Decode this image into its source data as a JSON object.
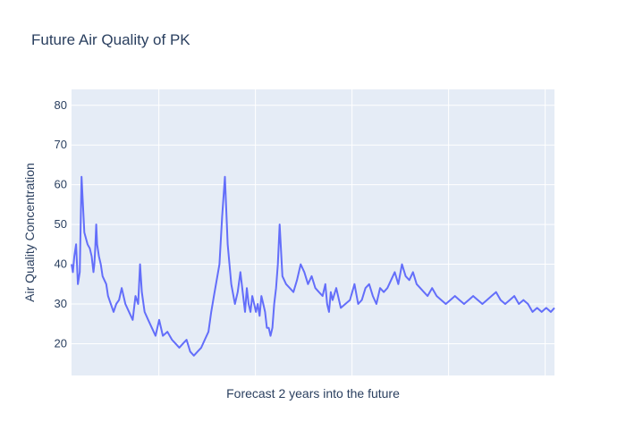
{
  "chart_data": {
    "type": "line",
    "title": "Future Air Quality of PK",
    "xlabel": "Forecast 2 years into the future",
    "ylabel": "Air Quality Concentration",
    "ylim": [
      12,
      84
    ],
    "yticks": [
      20,
      30,
      40,
      50,
      60,
      70,
      80
    ],
    "x_tick_labels_shown": false,
    "grid": true,
    "legend": "none",
    "x": [
      0,
      3,
      6,
      10,
      14,
      18,
      22,
      28,
      35,
      40,
      44,
      48,
      50,
      52,
      54,
      56,
      60,
      64,
      68,
      72,
      76,
      80,
      86,
      92,
      98,
      104,
      110,
      118,
      126,
      134,
      140,
      146,
      150,
      154,
      160,
      168,
      176,
      184,
      192,
      200,
      210,
      220,
      228,
      236,
      244,
      252,
      260,
      268,
      276,
      284,
      292,
      300,
      306,
      312,
      318,
      324,
      330,
      336,
      342,
      350,
      358,
      364,
      370,
      376,
      380,
      384,
      388,
      392,
      396,
      400,
      404,
      408,
      412,
      416,
      420,
      424,
      428,
      432,
      436,
      440,
      444,
      448,
      452,
      456,
      462,
      470,
      478,
      486,
      494,
      502,
      510,
      518,
      526,
      534,
      542,
      550,
      556,
      560,
      564,
      568,
      572,
      580,
      590,
      600,
      610,
      620,
      628,
      636,
      644,
      652,
      660,
      668,
      676,
      684,
      692,
      700,
      708,
      716,
      724,
      732,
      740,
      748,
      756,
      764,
      772,
      780,
      790,
      800,
      810,
      820,
      830,
      840,
      850,
      860,
      870,
      880,
      890,
      900,
      910,
      920,
      930,
      940,
      950,
      960,
      970,
      980,
      990,
      1000,
      1010,
      1020,
      1030,
      1040,
      1050,
      1058
    ],
    "y": [
      40,
      38,
      42,
      45,
      35,
      38,
      62,
      48,
      45,
      44,
      42,
      38,
      40,
      44,
      50,
      45,
      42,
      40,
      37,
      36,
      35,
      32,
      30,
      28,
      30,
      31,
      34,
      30,
      28,
      26,
      32,
      30,
      40,
      33,
      28,
      26,
      24,
      22,
      26,
      22,
      23,
      21,
      20,
      19,
      20,
      21,
      18,
      17,
      18,
      19,
      21,
      23,
      28,
      32,
      36,
      40,
      52,
      62,
      45,
      35,
      30,
      33,
      38,
      32,
      28,
      34,
      30,
      28,
      32,
      30,
      28,
      30,
      27,
      32,
      30,
      28,
      24,
      24,
      22,
      24,
      30,
      34,
      40,
      50,
      37,
      35,
      34,
      33,
      36,
      40,
      38,
      35,
      37,
      34,
      33,
      32,
      35,
      30,
      28,
      33,
      31,
      34,
      29,
      30,
      31,
      35,
      30,
      31,
      34,
      35,
      32,
      30,
      34,
      33,
      34,
      36,
      38,
      35,
      40,
      37,
      36,
      38,
      35,
      34,
      33,
      32,
      34,
      32,
      31,
      30,
      31,
      32,
      31,
      30,
      31,
      32,
      31,
      30,
      31,
      32,
      33,
      31,
      30,
      31,
      32,
      30,
      31,
      30,
      28,
      29,
      28,
      29,
      28,
      29
    ]
  }
}
